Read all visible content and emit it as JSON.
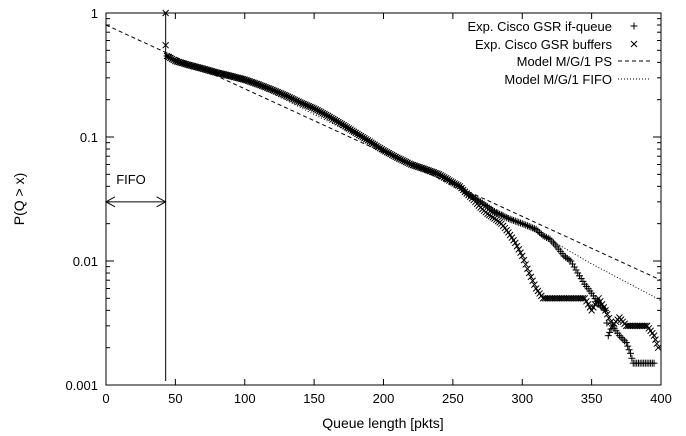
{
  "chart_data": {
    "type": "scatter",
    "title": "",
    "xlabel": "Queue length [pkts]",
    "ylabel": "P(Q > x)",
    "xlim": [
      0,
      400
    ],
    "ylim": [
      0.001,
      1
    ],
    "y_scale": "log",
    "grid": false,
    "legend_position": "top-right",
    "x_ticks": [
      0,
      50,
      100,
      150,
      200,
      250,
      300,
      350,
      400
    ],
    "x_tick_labels": [
      "0",
      "50",
      "100",
      "150",
      "200",
      "250",
      "300",
      "350",
      "400"
    ],
    "y_ticks": [
      1,
      0.1,
      0.01,
      0.001
    ],
    "y_tick_labels": [
      "1",
      "0.1",
      "0.01",
      "0.001"
    ],
    "vline_x": 43,
    "annotation": {
      "text": "FIFO",
      "arrow_from_x": 0,
      "arrow_to_x": 43,
      "y": 0.03
    },
    "series": [
      {
        "name": "Exp. Cisco GSR if-queue",
        "marker": "+",
        "points": [
          [
            44,
            0.45
          ],
          [
            50,
            0.41
          ],
          [
            60,
            0.38
          ],
          [
            70,
            0.355
          ],
          [
            80,
            0.33
          ],
          [
            90,
            0.31
          ],
          [
            100,
            0.29
          ],
          [
            110,
            0.265
          ],
          [
            120,
            0.24
          ],
          [
            130,
            0.215
          ],
          [
            140,
            0.19
          ],
          [
            150,
            0.17
          ],
          [
            160,
            0.148
          ],
          [
            170,
            0.127
          ],
          [
            180,
            0.108
          ],
          [
            190,
            0.092
          ],
          [
            200,
            0.078
          ],
          [
            210,
            0.068
          ],
          [
            220,
            0.06
          ],
          [
            230,
            0.055
          ],
          [
            240,
            0.05
          ],
          [
            250,
            0.043
          ],
          [
            255,
            0.04
          ],
          [
            260,
            0.035
          ],
          [
            270,
            0.03
          ],
          [
            280,
            0.025
          ],
          [
            290,
            0.022
          ],
          [
            300,
            0.02
          ],
          [
            310,
            0.018
          ],
          [
            315,
            0.016
          ],
          [
            320,
            0.015
          ],
          [
            325,
            0.013
          ],
          [
            330,
            0.011
          ],
          [
            335,
            0.01
          ],
          [
            340,
            0.008
          ],
          [
            345,
            0.0065
          ],
          [
            350,
            0.0055
          ],
          [
            355,
            0.0045
          ],
          [
            360,
            0.004
          ],
          [
            362,
            0.0025
          ],
          [
            365,
            0.003
          ],
          [
            370,
            0.0025
          ],
          [
            375,
            0.0022
          ],
          [
            378,
            0.0018
          ],
          [
            380,
            0.0015
          ],
          [
            385,
            0.0015
          ],
          [
            390,
            0.0015
          ],
          [
            395,
            0.0015
          ]
        ]
      },
      {
        "name": "Exp. Cisco GSR buffers",
        "marker": "x",
        "points": [
          [
            43,
            1.0
          ],
          [
            43,
            0.55
          ],
          [
            44,
            0.45
          ],
          [
            50,
            0.41
          ],
          [
            60,
            0.38
          ],
          [
            70,
            0.355
          ],
          [
            80,
            0.33
          ],
          [
            90,
            0.31
          ],
          [
            100,
            0.29
          ],
          [
            110,
            0.265
          ],
          [
            120,
            0.24
          ],
          [
            130,
            0.215
          ],
          [
            140,
            0.19
          ],
          [
            150,
            0.17
          ],
          [
            160,
            0.148
          ],
          [
            170,
            0.127
          ],
          [
            180,
            0.108
          ],
          [
            190,
            0.092
          ],
          [
            200,
            0.078
          ],
          [
            210,
            0.068
          ],
          [
            220,
            0.06
          ],
          [
            230,
            0.055
          ],
          [
            240,
            0.05
          ],
          [
            250,
            0.043
          ],
          [
            255,
            0.04
          ],
          [
            260,
            0.035
          ],
          [
            265,
            0.031
          ],
          [
            270,
            0.027
          ],
          [
            275,
            0.024
          ],
          [
            280,
            0.022
          ],
          [
            285,
            0.02
          ],
          [
            290,
            0.017
          ],
          [
            295,
            0.014
          ],
          [
            300,
            0.011
          ],
          [
            305,
            0.008
          ],
          [
            310,
            0.006
          ],
          [
            315,
            0.005
          ],
          [
            320,
            0.005
          ],
          [
            330,
            0.005
          ],
          [
            340,
            0.005
          ],
          [
            345,
            0.005
          ],
          [
            350,
            0.004
          ],
          [
            355,
            0.005
          ],
          [
            360,
            0.004
          ],
          [
            365,
            0.003
          ],
          [
            370,
            0.0035
          ],
          [
            375,
            0.003
          ],
          [
            380,
            0.003
          ],
          [
            385,
            0.003
          ],
          [
            390,
            0.003
          ],
          [
            395,
            0.0025
          ],
          [
            398,
            0.002
          ]
        ]
      },
      {
        "name": "Model M/G/1 PS",
        "style": "dashed",
        "points": [
          [
            0,
            0.8
          ],
          [
            400,
            0.007
          ]
        ]
      },
      {
        "name": "Model M/G/1 FIFO",
        "style": "dotted",
        "points": [
          [
            43,
            0.45
          ],
          [
            100,
            0.29
          ],
          [
            200,
            0.08
          ],
          [
            300,
            0.02
          ],
          [
            350,
            0.0095
          ],
          [
            400,
            0.0048
          ]
        ]
      }
    ]
  }
}
